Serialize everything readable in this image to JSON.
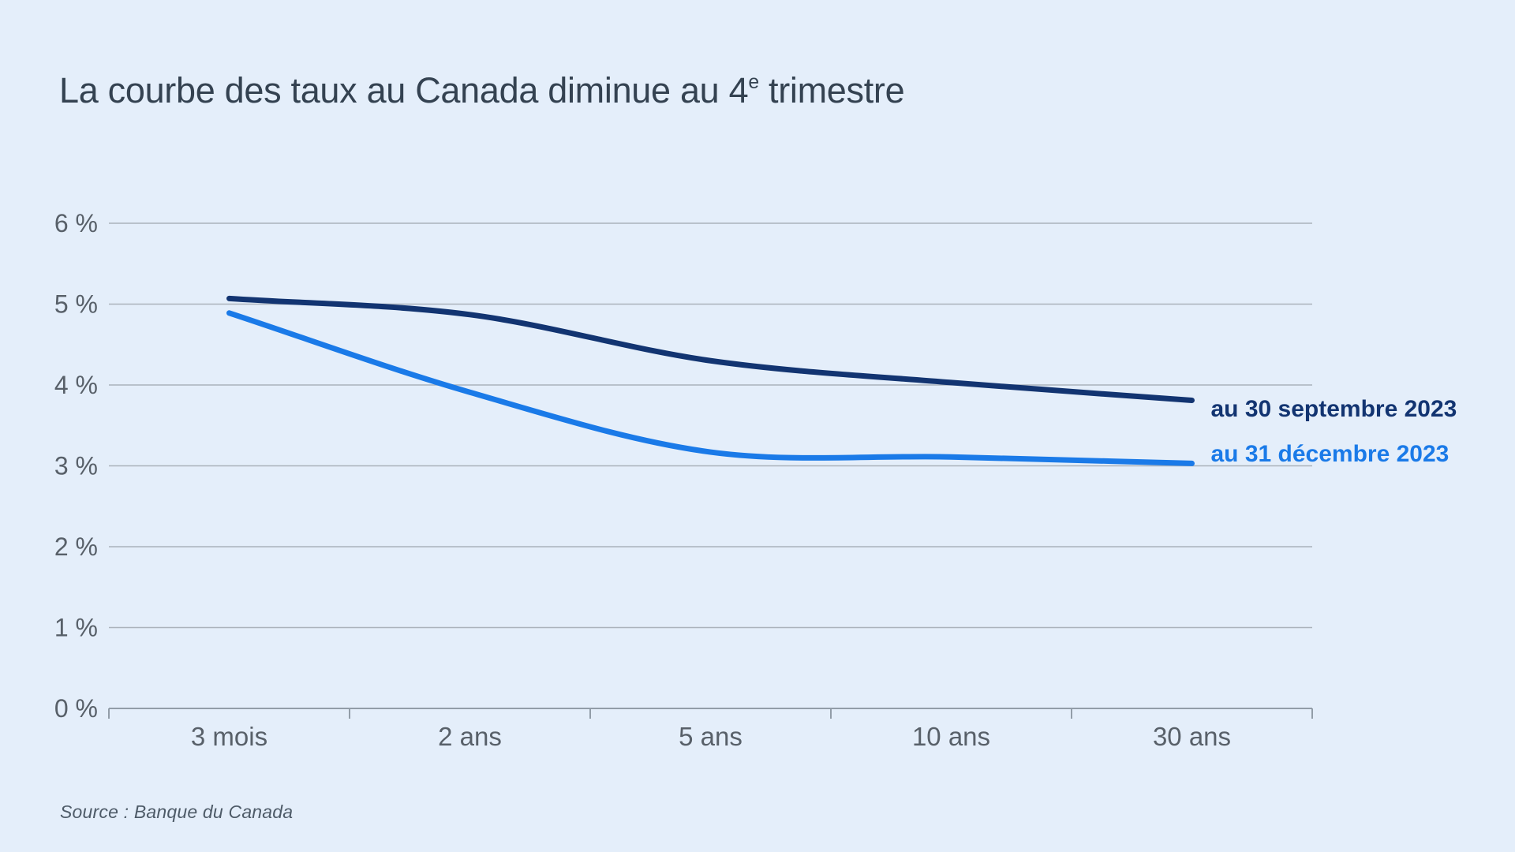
{
  "title": {
    "prefix": "La courbe des taux au Canada diminue au 4",
    "superscript": "e",
    "suffix": " trimestre"
  },
  "source": "Source : Banque du Canada",
  "colors": {
    "background": "#e4eefa",
    "grid": "#aab2bb",
    "axis": "#929da8",
    "tick_label": "#586069",
    "title": "#344251",
    "source": "#4e5b68"
  },
  "chart_data": {
    "type": "line",
    "title": "La courbe des taux au Canada diminue au 4e trimestre",
    "categories": [
      "3 mois",
      "2 ans",
      "5 ans",
      "10 ans",
      "30 ans"
    ],
    "series": [
      {
        "name": "au 30 septembre 2023",
        "color": "#123471",
        "values": [
          5.07,
          4.87,
          4.3,
          4.03,
          3.81
        ]
      },
      {
        "name": "au 31 décembre 2023",
        "color": "#1a7ae8",
        "values": [
          4.89,
          3.91,
          3.17,
          3.11,
          3.03
        ]
      }
    ],
    "xlabel": "",
    "ylabel": "",
    "ylim": [
      0,
      6
    ],
    "y_ticks": [
      0,
      1,
      2,
      3,
      4,
      5,
      6
    ],
    "y_tick_labels": [
      "0 %",
      "1 %",
      "2 %",
      "3 %",
      "4 %",
      "5 %",
      "6 %"
    ],
    "grid": "horizontal-only",
    "legend_position": "end-of-line-labels",
    "source_note": "Source : Banque du Canada"
  }
}
